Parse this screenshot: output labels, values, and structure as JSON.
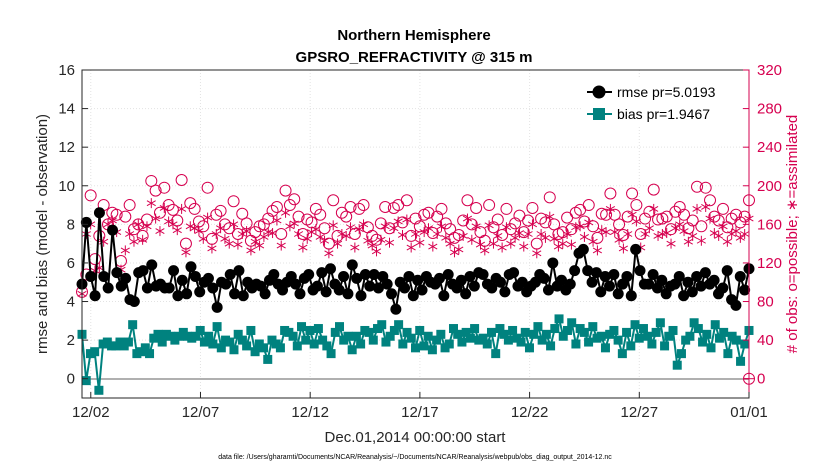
{
  "chart_data": {
    "type": "line",
    "title": "Northern Hemisphere",
    "subtitle": "GPSRO_REFRACTIVITY @ 315 m",
    "xlabel": "Dec.01,2014 00:00:00 start",
    "ylabel": "rmse and bias (model - observation)",
    "y2label": "# of obs: o=possible; ∗=assimilated",
    "footnote": "data file: /Users/gharamti/Documents/NCAR/Reanalysis/~/Documents/NCAR/Reanalysis/webpub/obs_diag_output_2014-12.nc",
    "xlim": [
      0.6,
      31.0
    ],
    "ylim": [
      -1,
      16
    ],
    "y2lim": [
      -20,
      320
    ],
    "xticks": [
      1,
      6,
      11,
      16,
      21,
      26,
      31
    ],
    "xticklabels": [
      "12/02",
      "12/07",
      "12/12",
      "12/17",
      "12/22",
      "12/27",
      "01/01"
    ],
    "yticks": [
      0,
      2,
      4,
      6,
      8,
      10,
      12,
      14,
      16
    ],
    "yticklabels": [
      "0",
      "2",
      "4",
      "6",
      "8",
      "10",
      "12",
      "14",
      "16"
    ],
    "y2ticks": [
      0,
      40,
      80,
      120,
      160,
      200,
      240,
      280,
      320
    ],
    "y2ticklabels": [
      "0",
      "40",
      "80",
      "120",
      "160",
      "200",
      "240",
      "280",
      "320"
    ],
    "colors": {
      "rmse": "#000000",
      "bias": "#00827f",
      "obs": "#d6004f",
      "zero_line": "#b0b0b0"
    },
    "series": [
      {
        "name": "rmse",
        "legend": "rmse pr=5.0193",
        "axis": "left",
        "values": [
          4.9,
          8.1,
          5.3,
          4.3,
          8.6,
          5.3,
          4.7,
          7.7,
          5.5,
          4.8,
          5.2,
          4.1,
          4.0,
          5.5,
          5.6,
          4.7,
          5.9,
          4.8,
          4.9,
          4.7,
          4.7,
          5.6,
          4.3,
          5.1,
          4.4,
          5.8,
          5.3,
          4.5,
          5.0,
          5.2,
          4.7,
          3.7,
          5.0,
          4.9,
          5.4,
          4.4,
          5.6,
          4.3,
          5.0,
          4.7,
          4.9,
          4.8,
          4.4,
          5.1,
          5.4,
          4.9,
          4.6,
          5.0,
          5.3,
          4.9,
          4.4,
          5.2,
          5.4,
          4.6,
          4.8,
          5.5,
          4.5,
          5.7,
          4.9,
          4.6,
          5.3,
          4.4,
          5.9,
          5.2,
          4.3,
          5.4,
          4.8,
          5.4,
          4.7,
          5.3,
          4.9,
          4.4,
          3.6,
          5.0,
          4.7,
          5.3,
          4.3,
          5.1,
          4.6,
          5.3,
          5.0,
          4.9,
          5.2,
          4.3,
          5.4,
          4.9,
          4.7,
          5.1,
          4.4,
          5.3,
          4.8,
          5.5,
          5.4,
          4.9,
          4.7,
          5.2,
          5.0,
          4.5,
          5.4,
          5.5,
          4.8,
          5.0,
          4.5,
          4.8,
          5.0,
          5.4,
          5.2,
          4.6,
          6.0,
          4.8,
          5.1,
          4.6,
          4.9,
          5.6,
          6.5,
          6.7,
          5.6,
          5.0,
          5.5,
          4.5,
          5.3,
          4.8,
          5.4,
          4.4,
          4.9,
          5.3,
          4.3,
          6.7,
          5.6,
          4.9,
          4.9,
          5.4,
          4.7,
          5.1,
          4.4,
          4.8,
          4.9,
          5.3,
          4.3,
          5.0,
          4.5,
          5.3,
          4.8,
          5.5,
          4.9,
          5.1,
          4.4,
          4.7,
          5.6,
          4.1,
          3.8,
          5.3,
          4.6,
          5.7
        ]
      },
      {
        "name": "bias",
        "legend": "bias pr=1.9467",
        "axis": "left",
        "values": [
          2.3,
          -0.1,
          1.3,
          1.4,
          -0.6,
          1.8,
          1.9,
          1.7,
          1.7,
          1.9,
          1.7,
          1.9,
          2.8,
          1.3,
          1.4,
          1.6,
          1.3,
          2.1,
          2.3,
          1.9,
          2.3,
          2.2,
          2.0,
          2.2,
          2.4,
          2.2,
          2.1,
          2.2,
          2.5,
          1.9,
          2.2,
          1.8,
          2.7,
          1.6,
          2.0,
          1.9,
          1.5,
          2.3,
          2.0,
          1.7,
          2.5,
          1.4,
          1.8,
          1.6,
          1.0,
          2.0,
          1.8,
          1.6,
          2.5,
          2.4,
          2.2,
          1.7,
          2.7,
          2.0,
          2.5,
          1.8,
          2.6,
          2.0,
          1.7,
          1.3,
          2.4,
          2.7,
          2.0,
          2.2,
          1.5,
          2.2,
          1.8,
          2.5,
          2.4,
          2.0,
          2.6,
          2.8,
          1.9,
          2.2,
          2.5,
          2.8,
          1.8,
          2.4,
          2.1,
          1.6,
          2.5,
          1.7,
          2.2,
          1.5,
          2.0,
          2.3,
          1.6,
          1.8,
          2.6,
          2.3,
          1.9,
          2.4,
          2.1,
          2.6,
          2.0,
          2.1,
          1.8,
          2.4,
          1.3,
          2.6,
          2.3,
          2.0,
          2.5,
          2.1,
          1.9,
          2.4,
          1.6,
          2.3,
          2.7,
          2.0,
          2.3,
          1.7,
          2.6,
          3.1,
          2.2,
          2.5,
          2.9,
          1.8,
          2.6,
          2.4,
          1.9,
          2.7,
          2.1,
          2.2,
          1.6,
          2.3,
          2.5,
          2.0,
          1.3,
          2.4,
          1.7,
          2.8,
          2.1,
          2.6,
          2.2,
          1.8,
          2.4,
          2.9,
          1.7,
          2.2,
          2.5,
          0.7,
          1.3,
          2.0,
          2.2,
          2.9,
          2.6,
          1.9,
          2.3,
          1.6,
          2.8,
          2.1,
          2.4,
          1.3,
          2.2,
          2.0,
          0.9,
          1.8,
          2.5
        ]
      },
      {
        "name": "possible",
        "legend": "o=possible",
        "axis": "right",
        "marker": "circle",
        "values": [
          90,
          108,
          190,
          124,
          148,
          180,
          160,
          172,
          170,
          122,
          168,
          180,
          155,
          160,
          148,
          165,
          205,
          195,
          172,
          198,
          180,
          175,
          164,
          206,
          140,
          182,
          176,
          163,
          158,
          198,
          145,
          170,
          174,
          160,
          156,
          184,
          150,
          171,
          161,
          143,
          152,
          158,
          160,
          166,
          174,
          178,
          150,
          195,
          180,
          186,
          168,
          150,
          165,
          162,
          176,
          170,
          156,
          140,
          185,
          148,
          172,
          168,
          178,
          150,
          176,
          180,
          157,
          148,
          144,
          161,
          178,
          156,
          177,
          180,
          162,
          185,
          148,
          166,
          158,
          170,
          172,
          151,
          168,
          176,
          161,
          155,
          146,
          149,
          164,
          185,
          160,
          177,
          152,
          143,
          180,
          157,
          165,
          149,
          176,
          155,
          161,
          169,
          152,
          164,
          177,
          140,
          166,
          162,
          188,
          160,
          150,
          152,
          167,
          155,
          172,
          175,
          163,
          180,
          158,
          146,
          171,
          170,
          192,
          170,
          160,
          149,
          168,
          192,
          180,
          150,
          166,
          173,
          196,
          165,
          166,
          168,
          155,
          173,
          178,
          170,
          156,
          164,
          199,
          158,
          198,
          185,
          168,
          164,
          176,
          157,
          166,
          170,
          162,
          168,
          185
        ]
      },
      {
        "name": "assimilated",
        "legend": "∗=assimilated",
        "axis": "right",
        "marker": "star",
        "values": [
          88,
          150,
          160,
          112,
          115,
          142,
          160,
          164,
          152,
          113,
          133,
          150,
          142,
          160,
          144,
          158,
          182,
          166,
          153,
          177,
          163,
          160,
          154,
          176,
          131,
          158,
          156,
          153,
          145,
          167,
          135,
          150,
          156,
          145,
          140,
          160,
          139,
          150,
          153,
          133,
          142,
          138,
          147,
          152,
          151,
          164,
          138,
          172,
          158,
          161,
          150,
          136,
          145,
          152,
          155,
          147,
          143,
          130,
          159,
          140,
          150,
          148,
          157,
          136,
          155,
          160,
          143,
          138,
          132,
          144,
          158,
          141,
          156,
          163,
          149,
          165,
          136,
          150,
          141,
          152,
          156,
          137,
          150,
          158,
          146,
          140,
          131,
          134,
          148,
          166,
          144,
          158,
          139,
          133,
          159,
          140,
          148,
          136,
          157,
          140,
          146,
          151,
          137,
          150,
          160,
          130,
          150,
          146,
          168,
          145,
          137,
          140,
          150,
          139,
          157,
          158,
          147,
          162,
          142,
          133,
          154,
          152,
          176,
          152,
          144,
          135,
          150,
          170,
          163,
          136,
          150,
          156,
          176,
          148,
          150,
          151,
          140,
          156,
          160,
          153,
          142,
          148,
          176,
          143,
          178,
          166,
          151,
          148,
          158,
          142,
          150,
          153,
          146,
          150,
          166
        ]
      }
    ],
    "zero_point": {
      "x": 31.0,
      "value": 0,
      "label": "⊕"
    }
  }
}
